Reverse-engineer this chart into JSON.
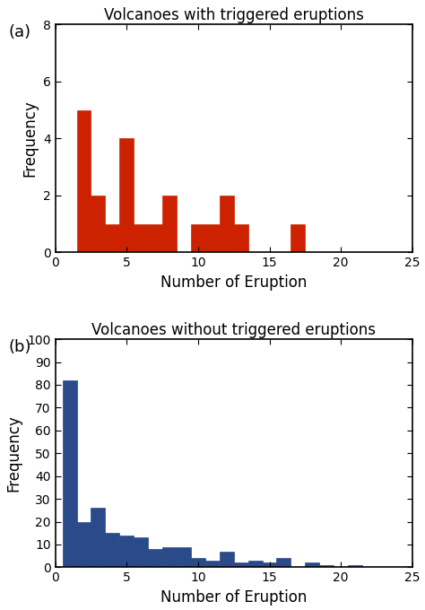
{
  "panel_a": {
    "title": "Volcanoes with triggered eruptions",
    "bar_positions": [
      2,
      3,
      4,
      5,
      6,
      7,
      8,
      9,
      10,
      11,
      12,
      13,
      14,
      15,
      16,
      17
    ],
    "bar_heights": [
      5,
      2,
      1,
      4,
      1,
      1,
      2,
      0,
      1,
      1,
      2,
      1,
      0,
      0,
      0,
      1
    ],
    "bar_color": "#cc2200",
    "bar_edgecolor": "#cc2200",
    "xlim": [
      0,
      25
    ],
    "ylim": [
      0,
      8
    ],
    "yticks": [
      0,
      2,
      4,
      6,
      8
    ],
    "xticks": [
      0,
      5,
      10,
      15,
      20,
      25
    ],
    "xlabel": "Number of Eruption",
    "ylabel": "Frequency",
    "bar_width": 1.0
  },
  "panel_b": {
    "title": "Volcanoes without triggered eruptions",
    "bar_positions": [
      1,
      2,
      3,
      4,
      5,
      6,
      7,
      8,
      9,
      10,
      11,
      12,
      13,
      14,
      15,
      16,
      17,
      18,
      19,
      20,
      21
    ],
    "bar_heights": [
      82,
      20,
      26,
      15,
      14,
      13,
      8,
      9,
      9,
      4,
      3,
      7,
      2,
      3,
      2,
      4,
      0,
      2,
      1,
      0,
      1
    ],
    "bar_color": "#2b4a8a",
    "bar_edgecolor": "#2b4a8a",
    "xlim": [
      0,
      25
    ],
    "ylim": [
      0,
      100
    ],
    "yticks": [
      0,
      10,
      20,
      30,
      40,
      50,
      60,
      70,
      80,
      90,
      100
    ],
    "xticks": [
      0,
      5,
      10,
      15,
      20,
      25
    ],
    "xlabel": "Number of Eruption",
    "ylabel": "Frequency",
    "bar_width": 1.0
  },
  "label_fontsize": 12,
  "title_fontsize": 12,
  "tick_fontsize": 10,
  "panel_label_fontsize": 13,
  "background_color": "#ffffff",
  "spine_color": "#000000"
}
